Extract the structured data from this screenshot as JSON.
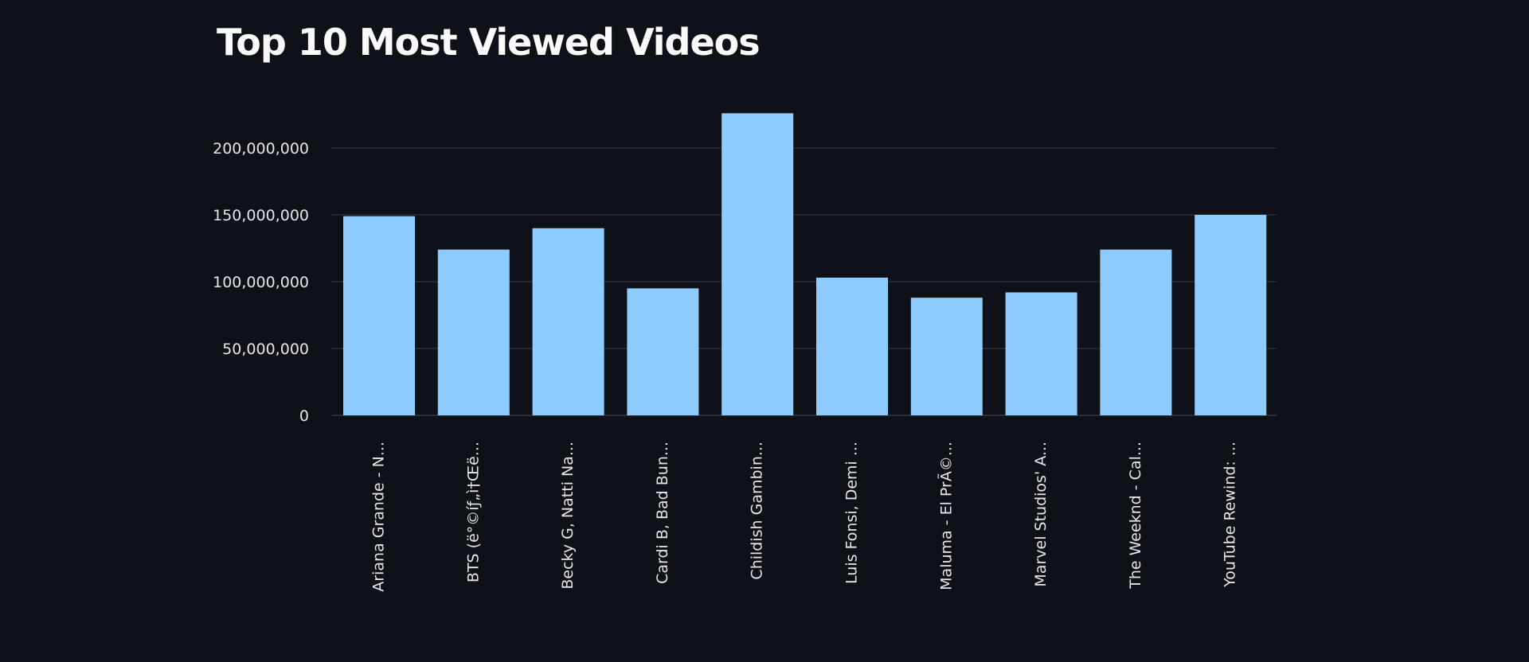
{
  "page": {
    "title": "Top 10 Most Viewed Videos"
  },
  "colors": {
    "background": "#0e1117",
    "bar": "#8ecbff",
    "grid": "#2a2e38",
    "text": "#e6e6ea"
  },
  "chart_data": {
    "type": "bar",
    "title": "Top 10 Most Viewed Videos",
    "xlabel": "",
    "ylabel": "",
    "ylim": [
      0,
      230000000
    ],
    "yticks": [
      0,
      50000000,
      100000000,
      150000000,
      200000000
    ],
    "ytick_labels": [
      "0",
      "50,000,000",
      "100,000,000",
      "150,000,000",
      "200,000,000"
    ],
    "grid": true,
    "categories": [
      "Ariana Grande - N...",
      "BTS (ë°©íƒ„ì†Œë...",
      "Becky G, Natti Na...",
      "Cardi B, Bad Bun...",
      "Childish Gambin...",
      "Luis Fonsi, Demi ...",
      "Maluma - El PrÃ©...",
      "Marvel Studios' A...",
      "The Weeknd - Cal...",
      "YouTube Rewind: ..."
    ],
    "values": [
      149000000,
      124000000,
      140000000,
      95000000,
      226000000,
      103000000,
      88000000,
      92000000,
      124000000,
      150000000
    ]
  }
}
